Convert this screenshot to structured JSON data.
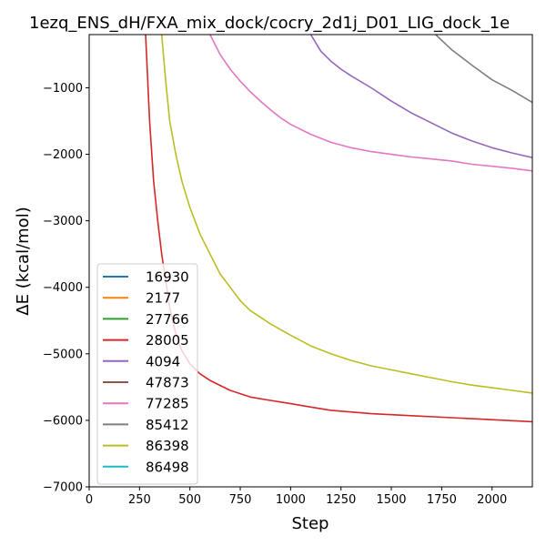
{
  "chart_data": {
    "type": "line",
    "title": "1ezq_ENS_dH/FXA_mix_dock/cocry_2d1j_D01_LIG_dock_1e",
    "xlabel": "Step",
    "ylabel": "ΔE (kcal/mol)",
    "xlim": [
      0,
      2200
    ],
    "ylim": [
      -7000,
      -200
    ],
    "xticks": [
      0,
      250,
      500,
      750,
      1000,
      1250,
      1500,
      1750,
      2000
    ],
    "yticks": [
      -7000,
      -6000,
      -5000,
      -4000,
      -3000,
      -2000,
      -1000
    ],
    "xtick_labels": [
      "0",
      "250",
      "500",
      "750",
      "1000",
      "1250",
      "1500",
      "1750",
      "2000"
    ],
    "ytick_labels": [
      "−7000",
      "−6000",
      "−5000",
      "−4000",
      "−3000",
      "−2000",
      "−1000"
    ],
    "grid": false,
    "legend_position": "lower-left",
    "series": [
      {
        "name": "16930",
        "color": "#1f77b4",
        "x": [],
        "y": []
      },
      {
        "name": "2177",
        "color": "#ff7f0e",
        "x": [],
        "y": []
      },
      {
        "name": "27766",
        "color": "#2ca02c",
        "x": [],
        "y": []
      },
      {
        "name": "28005",
        "color": "#d62728",
        "x": [
          280,
          300,
          320,
          340,
          360,
          380,
          400,
          430,
          460,
          500,
          550,
          600,
          700,
          800,
          900,
          1000,
          1100,
          1200,
          1400,
          1600,
          1800,
          2000,
          2200
        ],
        "y": [
          -200,
          -1500,
          -2400,
          -3000,
          -3500,
          -3900,
          -4300,
          -4700,
          -4950,
          -5150,
          -5300,
          -5400,
          -5550,
          -5650,
          -5700,
          -5750,
          -5800,
          -5850,
          -5900,
          -5930,
          -5960,
          -5990,
          -6020
        ]
      },
      {
        "name": "4094",
        "color": "#9467bd",
        "x": [
          1100,
          1150,
          1200,
          1250,
          1300,
          1400,
          1500,
          1600,
          1700,
          1800,
          1900,
          2000,
          2100,
          2200
        ],
        "y": [
          -200,
          -450,
          -600,
          -720,
          -820,
          -1000,
          -1200,
          -1380,
          -1530,
          -1680,
          -1800,
          -1900,
          -1980,
          -2050
        ]
      },
      {
        "name": "47873",
        "color": "#8c564b",
        "x": [],
        "y": []
      },
      {
        "name": "77285",
        "color": "#e377c2",
        "x": [
          600,
          650,
          700,
          750,
          800,
          850,
          900,
          950,
          1000,
          1100,
          1200,
          1300,
          1400,
          1500,
          1600,
          1700,
          1800,
          1900,
          2000,
          2100,
          2200
        ],
        "y": [
          -200,
          -500,
          -720,
          -900,
          -1060,
          -1200,
          -1330,
          -1450,
          -1550,
          -1700,
          -1820,
          -1900,
          -1960,
          -2000,
          -2040,
          -2070,
          -2100,
          -2150,
          -2180,
          -2210,
          -2250
        ]
      },
      {
        "name": "85412",
        "color": "#7f7f7f",
        "x": [
          1720,
          1800,
          1900,
          2000,
          2100,
          2200
        ],
        "y": [
          -200,
          -430,
          -660,
          -880,
          -1040,
          -1220
        ]
      },
      {
        "name": "86398",
        "color": "#bcbd22",
        "x": [
          360,
          380,
          400,
          430,
          460,
          500,
          550,
          600,
          650,
          700,
          750,
          800,
          900,
          1000,
          1100,
          1200,
          1300,
          1400,
          1500,
          1600,
          1700,
          1800,
          1900,
          2000,
          2100,
          2200
        ],
        "y": [
          -200,
          -900,
          -1500,
          -2000,
          -2400,
          -2800,
          -3200,
          -3500,
          -3800,
          -4000,
          -4200,
          -4350,
          -4550,
          -4720,
          -4880,
          -5000,
          -5100,
          -5180,
          -5240,
          -5300,
          -5360,
          -5420,
          -5470,
          -5510,
          -5550,
          -5590
        ]
      },
      {
        "name": "86498",
        "color": "#17becf",
        "x": [],
        "y": []
      }
    ]
  }
}
